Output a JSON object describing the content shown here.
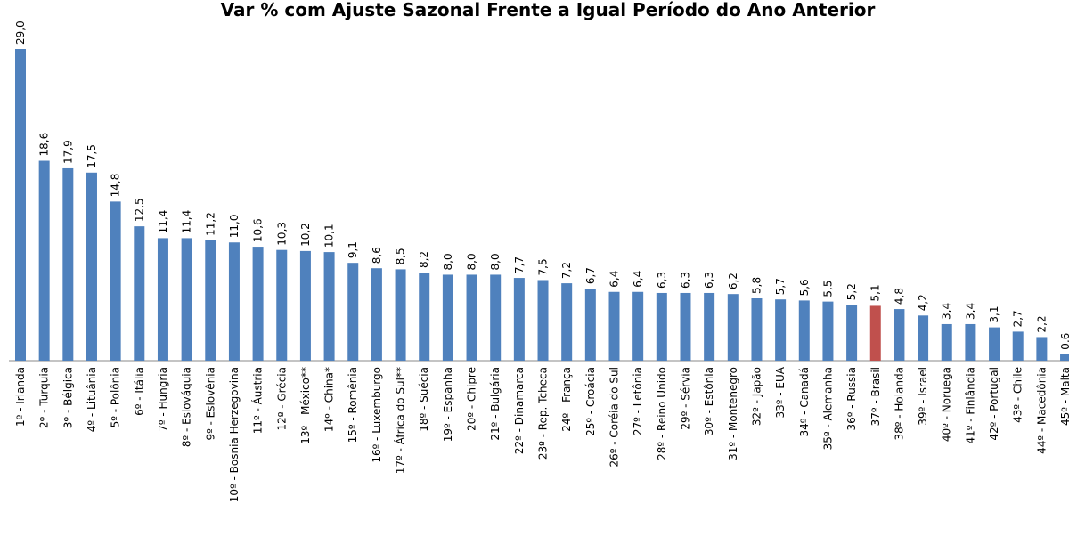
{
  "chart_data": {
    "type": "bar",
    "title": "Var % com Ajuste Sazonal Frente a Igual Período do Ano Anterior",
    "categories": [
      "1º - Irlanda",
      "2º - Turquia",
      "3º - Bélgica",
      "4º - Lituânia",
      "5º - Polônia",
      "6º - Itália",
      "7º - Hungria",
      "8º - Eslováquia",
      "9º - Eslovênia",
      "10º - Bosnia Herzegovina",
      "11º - Áustria",
      "12º - Grécia",
      "13º - México**",
      "14º - China*",
      "15º - Romênia",
      "16º - Luxemburgo",
      "17º - África do Sul**",
      "18º - Suécia",
      "19º - Espanha",
      "20º - Chipre",
      "21º - Bulgária",
      "22º - Dinamarca",
      "23º - Rep. Tcheca",
      "24º - França",
      "25º - Croácia",
      "26º - Coréia do Sul",
      "27º - Letônia",
      "28º - Reino Unido",
      "29º - Sérvia",
      "30º - Estônia",
      "31º - Montenegro",
      "32º - Japão",
      "33º - EUA",
      "34º - Canadá",
      "35º - Alemanha",
      "36º - Russia",
      "37º - Brasil",
      "38º - Holanda",
      "39º - Israel",
      "40º - Noruega",
      "41º - Finlândia",
      "42º - Portugal",
      "43º - Chile",
      "44º - Macedônia",
      "45º - Malta"
    ],
    "values": [
      29.0,
      18.6,
      17.9,
      17.5,
      14.8,
      12.5,
      11.4,
      11.4,
      11.2,
      11.0,
      10.6,
      10.3,
      10.2,
      10.1,
      9.1,
      8.6,
      8.5,
      8.2,
      8.0,
      8.0,
      8.0,
      7.7,
      7.5,
      7.2,
      6.7,
      6.4,
      6.4,
      6.3,
      6.3,
      6.3,
      6.2,
      5.8,
      5.7,
      5.6,
      5.5,
      5.2,
      5.1,
      4.8,
      4.2,
      3.4,
      3.4,
      3.1,
      2.7,
      2.2,
      0.6
    ],
    "value_labels": [
      "29,0",
      "18,6",
      "17,9",
      "17,5",
      "14,8",
      "12,5",
      "11,4",
      "11,4",
      "11,2",
      "11,0",
      "10,6",
      "10,3",
      "10,2",
      "10,1",
      "9,1",
      "8,6",
      "8,5",
      "8,2",
      "8,0",
      "8,0",
      "8,0",
      "7,7",
      "7,5",
      "7,2",
      "6,7",
      "6,4",
      "6,4",
      "6,3",
      "6,3",
      "6,3",
      "6,2",
      "5,8",
      "5,7",
      "5,6",
      "5,5",
      "5,2",
      "5,1",
      "4,8",
      "4,2",
      "3,4",
      "3,4",
      "3,1",
      "2,7",
      "2,2",
      "0,6"
    ],
    "colors": [
      "#4f81bd",
      "#4f81bd",
      "#4f81bd",
      "#4f81bd",
      "#4f81bd",
      "#4f81bd",
      "#4f81bd",
      "#4f81bd",
      "#4f81bd",
      "#4f81bd",
      "#4f81bd",
      "#4f81bd",
      "#4f81bd",
      "#4f81bd",
      "#4f81bd",
      "#4f81bd",
      "#4f81bd",
      "#4f81bd",
      "#4f81bd",
      "#4f81bd",
      "#4f81bd",
      "#4f81bd",
      "#4f81bd",
      "#4f81bd",
      "#4f81bd",
      "#4f81bd",
      "#4f81bd",
      "#4f81bd",
      "#4f81bd",
      "#4f81bd",
      "#4f81bd",
      "#4f81bd",
      "#4f81bd",
      "#4f81bd",
      "#4f81bd",
      "#4f81bd",
      "#c0504d",
      "#4f81bd",
      "#4f81bd",
      "#4f81bd",
      "#4f81bd",
      "#4f81bd",
      "#4f81bd",
      "#4f81bd",
      "#4f81bd"
    ]
  }
}
